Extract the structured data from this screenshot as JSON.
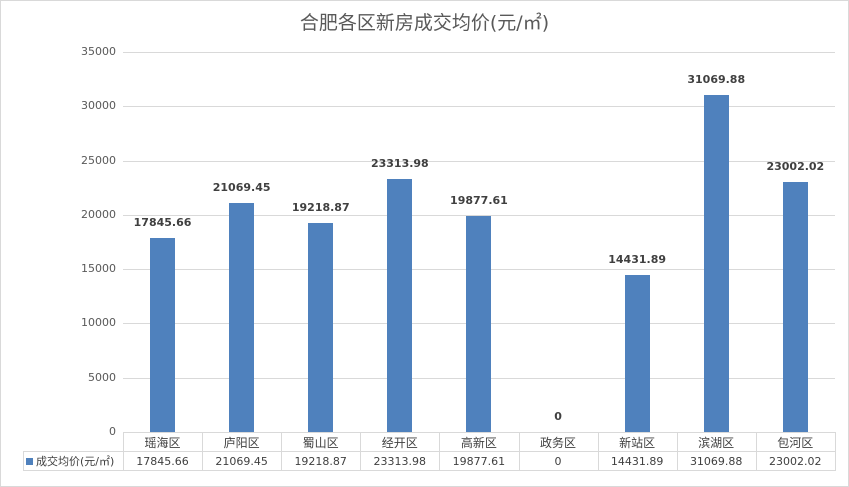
{
  "chart_data": {
    "type": "bar",
    "title": "合肥各区新房成交均价(元/㎡)",
    "xlabel": "",
    "ylabel": "",
    "ylim": [
      0,
      35000
    ],
    "yticks": [
      "0",
      "5000",
      "10000",
      "15000",
      "20000",
      "25000",
      "30000",
      "35000"
    ],
    "grid": true,
    "legend_position": "data-table",
    "categories": [
      "瑶海区",
      "庐阳区",
      "蜀山区",
      "经开区",
      "高新区",
      "政务区",
      "新站区",
      "滨湖区",
      "包河区"
    ],
    "series": [
      {
        "name": "成交均价(元/㎡)",
        "color": "#4f81bd",
        "values": [
          17845.66,
          21069.45,
          19218.87,
          23313.98,
          19877.61,
          0,
          14431.89,
          31069.88,
          23002.02
        ],
        "labels": [
          "17845.66",
          "21069.45",
          "19218.87",
          "23313.98",
          "19877.61",
          "0",
          "14431.89",
          "31069.88",
          "23002.02"
        ]
      }
    ]
  }
}
